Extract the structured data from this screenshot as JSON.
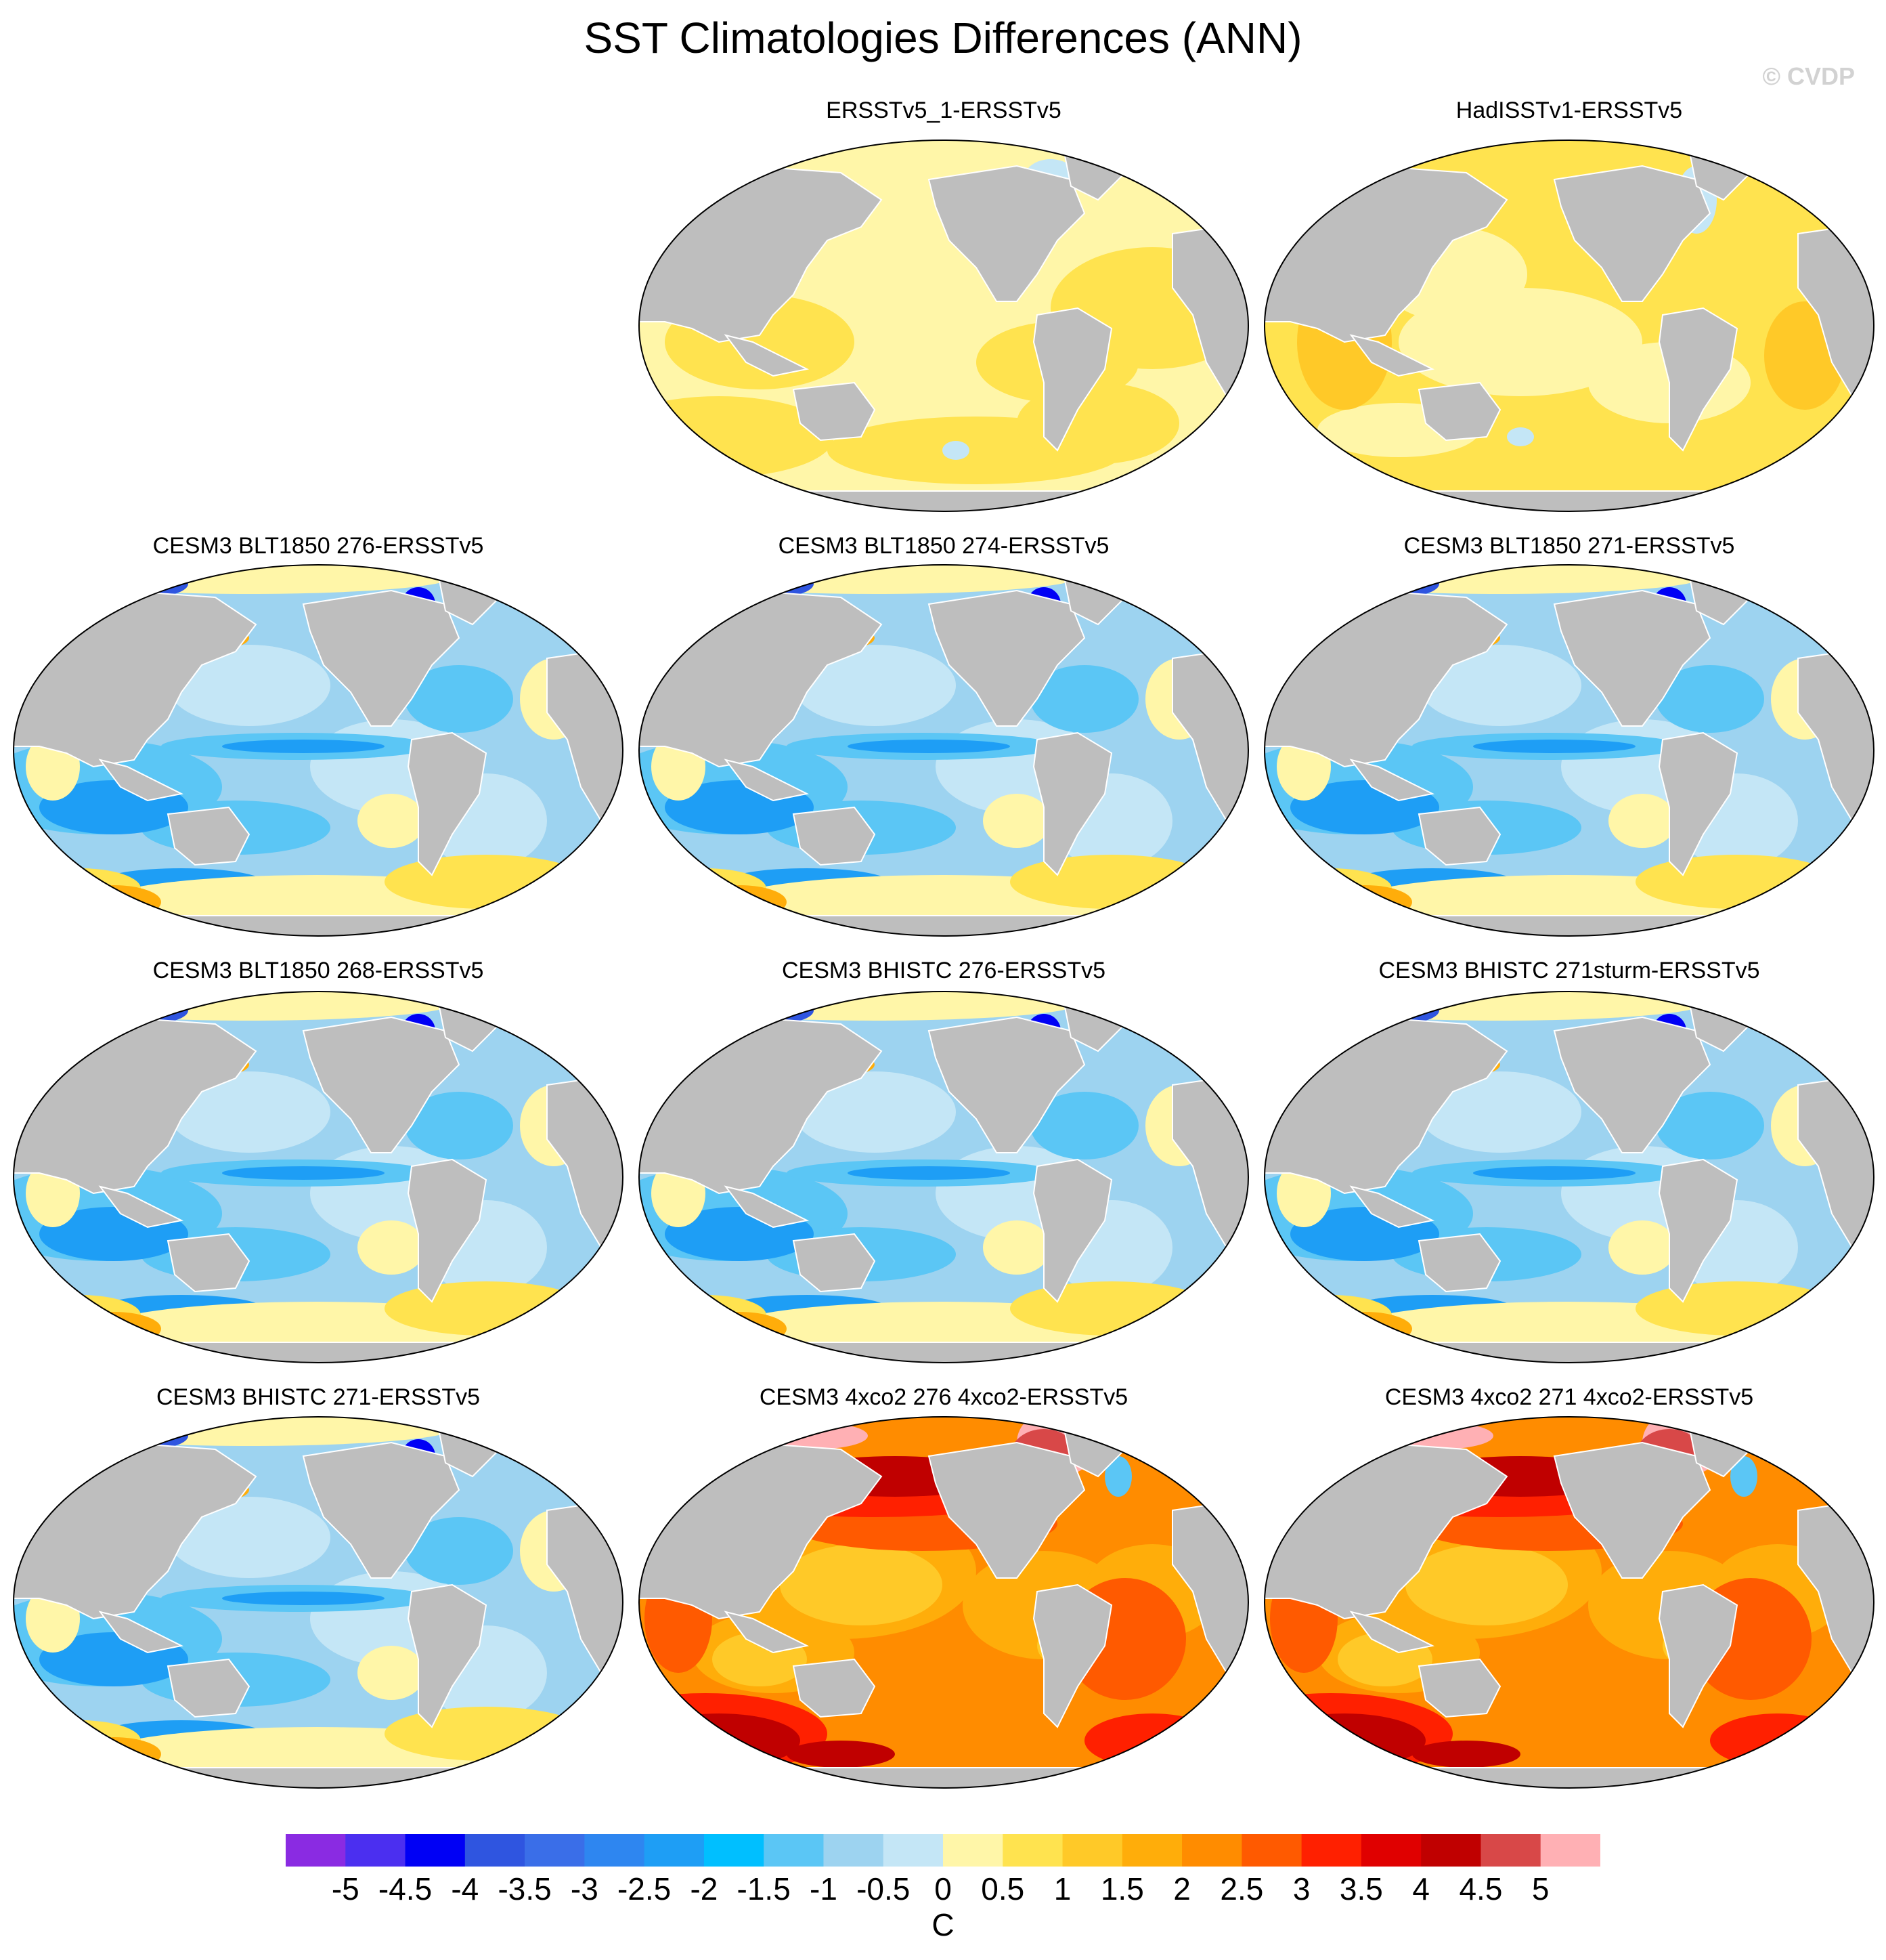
{
  "figure": {
    "title": "SST Climatologies Differences (ANN)",
    "watermark": "© CVDP"
  },
  "panels": [
    {
      "title": "ERSSTv5_1-ERSSTv5",
      "pattern": "obs_small"
    },
    {
      "title": "HadISSTv1-ERSSTv5",
      "pattern": "obs_warm"
    },
    {
      "title": "CESM3 BLT1850 276-ERSSTv5",
      "pattern": "model_cool"
    },
    {
      "title": "CESM3 BLT1850 274-ERSSTv5",
      "pattern": "model_cool"
    },
    {
      "title": "CESM3 BLT1850 271-ERSSTv5",
      "pattern": "model_cool"
    },
    {
      "title": "CESM3 BLT1850 268-ERSSTv5",
      "pattern": "model_cool"
    },
    {
      "title": "CESM3 BHISTC 276-ERSSTv5",
      "pattern": "model_cool"
    },
    {
      "title": "CESM3 BHISTC 271sturm-ERSSTv5",
      "pattern": "model_cool"
    },
    {
      "title": "CESM3 BHISTC 271-ERSSTv5",
      "pattern": "model_cool"
    },
    {
      "title": "CESM3 4xco2 276 4xco2-ERSSTv5",
      "pattern": "model_warm"
    },
    {
      "title": "CESM3 4xco2 271 4xco2-ERSSTv5",
      "pattern": "model_warm"
    }
  ],
  "colorbar": {
    "units": "C",
    "tick_labels": [
      "-5",
      "-4.5",
      "-4",
      "-3.5",
      "-3",
      "-2.5",
      "-2",
      "-1.5",
      "-1",
      "-0.5",
      "0",
      "0.5",
      "1",
      "1.5",
      "2",
      "2.5",
      "3",
      "3.5",
      "4",
      "4.5",
      "5"
    ],
    "colors": [
      "#8a2be2",
      "#4b2ff0",
      "#0000f5",
      "#2f55e0",
      "#3a6ee8",
      "#2e86f0",
      "#1e9ef5",
      "#00bfff",
      "#5bc6f5",
      "#9dd3f0",
      "#c4e6f6",
      "#fff6a8",
      "#ffe34f",
      "#ffc928",
      "#ffad0a",
      "#ff8c00",
      "#ff5a00",
      "#ff2000",
      "#e00000",
      "#c00000",
      "#d84848",
      "#ffb0b4"
    ]
  },
  "land_color": "#bebebe"
}
